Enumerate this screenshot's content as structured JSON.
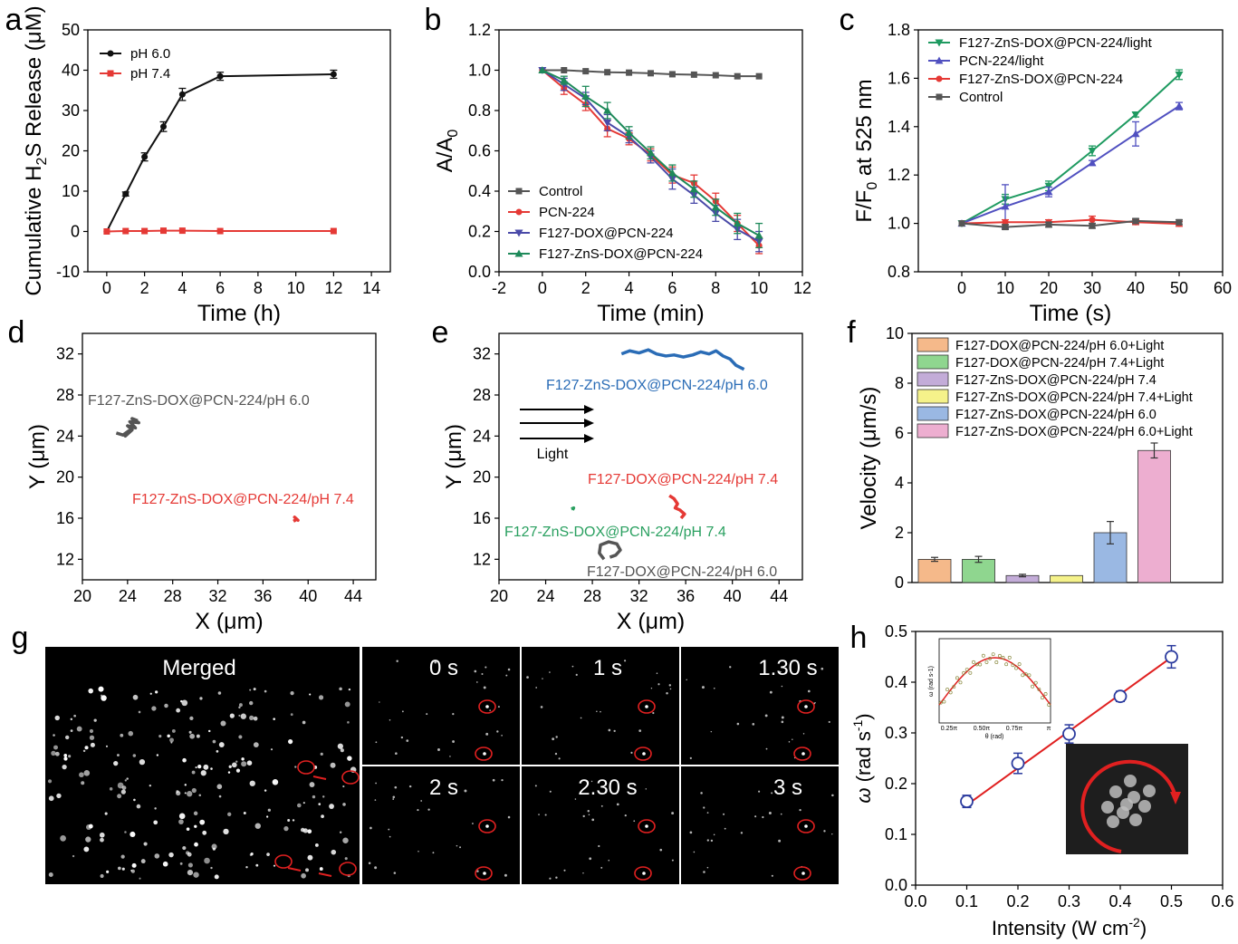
{
  "chart_data": [
    {
      "panel": "a",
      "type": "line",
      "xlabel": "Time (h)",
      "ylabel": "Cumulative H2S Release (μM)",
      "xlim": [
        -1,
        15
      ],
      "ylim": [
        -10,
        50
      ],
      "xticks": [
        0,
        2,
        4,
        6,
        8,
        10,
        12,
        14
      ],
      "yticks": [
        -10,
        0,
        10,
        20,
        30,
        40,
        50
      ],
      "legend_position": "top-left",
      "series": [
        {
          "name": "pH 6.0",
          "color": "#111111",
          "marker": "circle",
          "x": [
            0,
            1,
            2,
            3,
            4,
            6,
            12
          ],
          "y": [
            0,
            9.3,
            18.5,
            26,
            34,
            38.5,
            39
          ],
          "err": [
            0,
            0.5,
            1,
            1.2,
            1.5,
            1,
            1
          ]
        },
        {
          "name": "pH 7.4",
          "color": "#e53935",
          "marker": "square",
          "x": [
            0,
            1,
            2,
            3,
            4,
            6,
            12
          ],
          "y": [
            0,
            0.1,
            0.1,
            0.2,
            0.2,
            0.1,
            0.1
          ],
          "err": [
            0,
            0,
            0,
            0,
            0,
            0,
            0
          ]
        }
      ]
    },
    {
      "panel": "b",
      "type": "line",
      "xlabel": "Time (min)",
      "ylabel": "A/A0",
      "xlim": [
        -2,
        12
      ],
      "ylim": [
        0,
        1.2
      ],
      "xticks": [
        -2,
        0,
        2,
        4,
        6,
        8,
        10,
        12
      ],
      "yticks": [
        0.0,
        0.2,
        0.4,
        0.6,
        0.8,
        1.0,
        1.2
      ],
      "legend_position": "bottom-left",
      "series": [
        {
          "name": "Control",
          "color": "#555555",
          "marker": "square",
          "x": [
            0,
            1,
            2,
            3,
            4,
            5,
            6,
            7,
            8,
            9,
            10
          ],
          "y": [
            1.0,
            1.0,
            0.995,
            0.99,
            0.988,
            0.985,
            0.98,
            0.978,
            0.975,
            0.97,
            0.97
          ],
          "err": [
            0,
            0,
            0,
            0,
            0,
            0,
            0,
            0,
            0,
            0,
            0
          ]
        },
        {
          "name": "PCN-224",
          "color": "#e53935",
          "marker": "circle",
          "x": [
            0,
            1,
            2,
            3,
            4,
            5,
            6,
            7,
            8,
            9,
            10
          ],
          "y": [
            1.0,
            0.91,
            0.83,
            0.71,
            0.66,
            0.58,
            0.48,
            0.44,
            0.35,
            0.24,
            0.13
          ],
          "err": [
            0,
            0.03,
            0.03,
            0.04,
            0.03,
            0.03,
            0.04,
            0.04,
            0.04,
            0.04,
            0.04
          ]
        },
        {
          "name": "F127-DOX@PCN-224",
          "color": "#4a4aa8",
          "marker": "triangle-down",
          "x": [
            0,
            1,
            2,
            3,
            4,
            5,
            6,
            7,
            8,
            9,
            10
          ],
          "y": [
            1.0,
            0.93,
            0.86,
            0.74,
            0.67,
            0.57,
            0.46,
            0.38,
            0.29,
            0.21,
            0.15
          ],
          "err": [
            0,
            0.03,
            0.03,
            0.04,
            0.03,
            0.03,
            0.05,
            0.04,
            0.04,
            0.05,
            0.05
          ]
        },
        {
          "name": "F127-ZnS-DOX@PCN-224",
          "color": "#1e8a5a",
          "marker": "triangle-up",
          "x": [
            0,
            1,
            2,
            3,
            4,
            5,
            6,
            7,
            8,
            9,
            10
          ],
          "y": [
            1.0,
            0.95,
            0.87,
            0.8,
            0.69,
            0.59,
            0.49,
            0.41,
            0.32,
            0.24,
            0.18
          ],
          "err": [
            0,
            0.02,
            0.05,
            0.04,
            0.03,
            0.03,
            0.04,
            0.04,
            0.04,
            0.05,
            0.06
          ]
        }
      ]
    },
    {
      "panel": "c",
      "type": "line",
      "xlabel": "Time (s)",
      "ylabel": "F/F0 at 525 nm",
      "xlim": [
        -10,
        60
      ],
      "ylim": [
        0.8,
        1.8
      ],
      "xticks": [
        0,
        10,
        20,
        30,
        40,
        50,
        60
      ],
      "yticks": [
        0.8,
        1.0,
        1.2,
        1.4,
        1.6,
        1.8
      ],
      "legend_position": "top-left",
      "series": [
        {
          "name": "F127-ZnS-DOX@PCN-224/light",
          "color": "#1e9a60",
          "marker": "triangle-down",
          "x": [
            0,
            10,
            20,
            30,
            40,
            50
          ],
          "y": [
            1.0,
            1.1,
            1.155,
            1.3,
            1.45,
            1.615
          ],
          "err": [
            0,
            0.02,
            0.02,
            0.02,
            0.01,
            0.02
          ]
        },
        {
          "name": "PCN-224/light",
          "color": "#5050c0",
          "marker": "triangle-up",
          "x": [
            0,
            10,
            20,
            30,
            40,
            50
          ],
          "y": [
            1.0,
            1.07,
            1.13,
            1.25,
            1.37,
            1.485
          ],
          "err": [
            0,
            0.09,
            0.02,
            0.01,
            0.05,
            0.015
          ]
        },
        {
          "name": "F127-ZnS-DOX@PCN-224",
          "color": "#e53935",
          "marker": "circle",
          "x": [
            0,
            10,
            20,
            30,
            40,
            50
          ],
          "y": [
            1.0,
            1.005,
            1.005,
            1.015,
            1.005,
            0.998
          ],
          "err": [
            0,
            0.01,
            0.01,
            0.015,
            0.01,
            0.01
          ]
        },
        {
          "name": "Control",
          "color": "#555555",
          "marker": "square",
          "x": [
            0,
            10,
            20,
            30,
            40,
            50
          ],
          "y": [
            1.0,
            0.985,
            0.995,
            0.99,
            1.01,
            1.005
          ],
          "err": [
            0,
            0.01,
            0.01,
            0.01,
            0.01,
            0.01
          ]
        }
      ]
    },
    {
      "panel": "d",
      "type": "scatter",
      "xlabel": "X (μm)",
      "ylabel": "Y (μm)",
      "xlim": [
        20,
        46
      ],
      "ylim": [
        10,
        34
      ],
      "xticks": [
        20,
        24,
        28,
        32,
        36,
        40,
        44
      ],
      "yticks": [
        12,
        16,
        20,
        24,
        28,
        32
      ],
      "series": [
        {
          "name": "F127-ZnS-DOX@PCN-224/pH 6.0",
          "color": "#555555",
          "x": [
            23.0,
            23.6,
            24.1,
            23.8,
            24.4,
            24.0,
            24.7,
            24.2,
            25.0,
            24.4,
            24.9
          ],
          "y": [
            24.3,
            24.1,
            24.5,
            24.0,
            24.6,
            25.0,
            24.8,
            25.4,
            25.3,
            25.7,
            25.5
          ]
        },
        {
          "name": "F127-ZnS-DOX@PCN-224/pH 7.4",
          "color": "#e53935",
          "x": [
            38.7,
            39.0,
            38.8,
            39.1,
            38.9
          ],
          "y": [
            15.7,
            15.9,
            16.1,
            15.8,
            16.0
          ]
        }
      ]
    },
    {
      "panel": "e",
      "type": "scatter",
      "xlabel": "X (μm)",
      "ylabel": "Y (μm)",
      "xlim": [
        20,
        46
      ],
      "ylim": [
        10,
        34
      ],
      "xticks": [
        20,
        24,
        28,
        32,
        36,
        40,
        44
      ],
      "yticks": [
        12,
        16,
        20,
        24,
        28,
        32
      ],
      "arrow_label": "Light",
      "series": [
        {
          "name": "F127-ZnS-DOX@PCN-224/pH 6.0",
          "color": "#2a6cb6",
          "x": [
            30.5,
            31.2,
            32.0,
            32.8,
            33.5,
            34.3,
            35.0,
            35.8,
            36.6,
            37.3,
            38.0,
            38.6,
            39.2,
            39.8,
            40.3,
            41.0
          ],
          "y": [
            32.0,
            32.3,
            32.1,
            32.4,
            32.0,
            31.8,
            31.9,
            31.7,
            31.9,
            32.2,
            32.0,
            32.3,
            31.8,
            31.5,
            30.9,
            30.5
          ]
        },
        {
          "name": "F127-DOX@PCN-224/pH 7.4",
          "color": "#e53935",
          "x": [
            34.6,
            35.0,
            35.3,
            35.1,
            35.5,
            35.9,
            35.6
          ],
          "y": [
            18.2,
            17.9,
            17.4,
            17.0,
            16.8,
            16.4,
            16.0
          ]
        },
        {
          "name": "F127-ZnS-DOX@PCN-224/pH 7.4",
          "color": "#2aa060",
          "x": [
            26.2,
            26.4,
            26.3
          ],
          "y": [
            16.9,
            17.0,
            16.8
          ]
        },
        {
          "name": "F127-DOX@PCN-224/pH 6.0",
          "color": "#555555",
          "x": [
            29.0,
            28.6,
            28.7,
            29.4,
            30.1,
            30.4,
            30.0,
            29.5
          ],
          "y": [
            12.0,
            12.6,
            13.4,
            13.7,
            13.5,
            12.9,
            12.4,
            12.2
          ]
        }
      ]
    },
    {
      "panel": "f",
      "type": "bar",
      "ylabel": "Velocity (μm/s)",
      "ylim": [
        0,
        10
      ],
      "yticks": [
        0,
        2,
        4,
        6,
        8,
        10
      ],
      "legend_position": "top-left",
      "categories": [
        "F127-DOX@PCN-224/pH 6.0+Light",
        "F127-DOX@PCN-224/pH 7.4+Light",
        "F127-ZnS-DOX@PCN-224/pH 7.4",
        "F127-ZnS-DOX@PCN-224/pH 7.4+Light",
        "F127-ZnS-DOX@PCN-224/pH 6.0",
        "F127-ZnS-DOX@PCN-224/pH 6.0+Light"
      ],
      "values": [
        0.93,
        0.93,
        0.28,
        0.28,
        2.0,
        5.3
      ],
      "errors": [
        0.08,
        0.12,
        0.05,
        0.0,
        0.45,
        0.3
      ],
      "colors": [
        "#f5b98a",
        "#8fd68f",
        "#c3acd8",
        "#f5f28a",
        "#9ab8e3",
        "#edaed0"
      ]
    },
    {
      "panel": "h",
      "type": "scatter",
      "xlabel": "Intensity (W cm-2)",
      "ylabel": "ω (rad s-1)",
      "xlim": [
        0.0,
        0.6
      ],
      "ylim": [
        0.0,
        0.5
      ],
      "xticks": [
        0.0,
        0.1,
        0.2,
        0.3,
        0.4,
        0.5,
        0.6
      ],
      "yticks": [
        0.0,
        0.1,
        0.2,
        0.3,
        0.4,
        0.5
      ],
      "series": [
        {
          "name": "data",
          "color": "#2a3a9e",
          "x": [
            0.1,
            0.2,
            0.3,
            0.4,
            0.5
          ],
          "y": [
            0.165,
            0.24,
            0.298,
            0.372,
            0.45
          ],
          "err": [
            0.012,
            0.02,
            0.018,
            0.01,
            0.022
          ]
        },
        {
          "name": "fit",
          "color": "#e02020",
          "x": [
            0.1,
            0.5
          ],
          "y": [
            0.158,
            0.449
          ]
        }
      ],
      "inset": {
        "xlabel": "θ (rad)",
        "ylabel": "ω (rad s-1)",
        "xticks": [
          "0.25π",
          "0.50π",
          "0.75π",
          "π"
        ]
      }
    }
  ],
  "panels": {
    "labels": [
      "a",
      "b",
      "c",
      "d",
      "e",
      "f",
      "g",
      "h"
    ],
    "g": {
      "merged_label": "Merged",
      "frame_labels": [
        "0 s",
        "1 s",
        "1.30 s",
        "2 s",
        "2.30 s",
        "3 s"
      ]
    }
  }
}
